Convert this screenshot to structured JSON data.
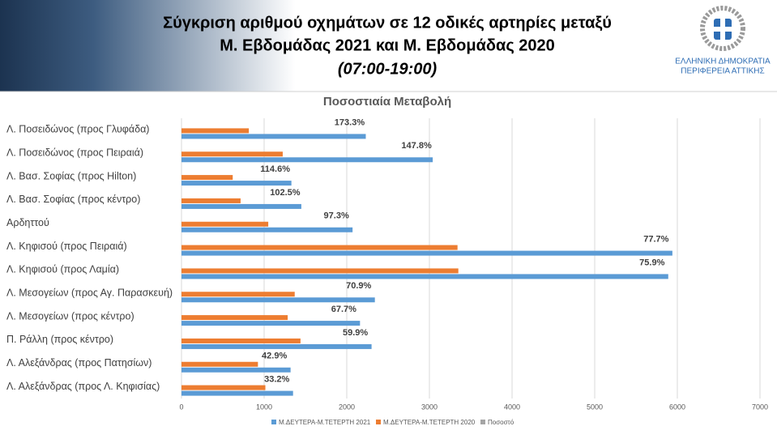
{
  "header": {
    "title": [
      "Σύγκριση αριθμού οχημάτων σε 12 οδικές αρτηρίες μεταξύ",
      "Μ. Εβδομάδας 2021 και Μ. Εβδομάδας 2020",
      "(07:00-19:00)"
    ],
    "logo": [
      "ΕΛΛΗΝΙΚΗ ΔΗΜΟΚΡΑΤΙΑ",
      "ΠΕΡΙΦΕΡΕΙΑ ΑΤΤΙΚΗΣ"
    ]
  },
  "chart_data": {
    "type": "bar",
    "orientation": "horizontal",
    "title": "Ποσοστιαία Μεταβολή",
    "categories": [
      "Λ. Ποσειδώνος (προς Γλυφάδα)",
      "Λ. Ποσειδώνος (προς Πειραιά)",
      "Λ. Βασ. Σοφίας (προς Hilton)",
      "Λ. Βασ. Σοφίας (προς κέντρο)",
      "Αρδηττού",
      "Λ. Κηφισού (προς Πειραιά)",
      "Λ. Κηφισού (προς Λαμία)",
      "Λ. Μεσογείων (προς Αγ. Παρασκευή)",
      "Λ. Μεσογείων (προς κέντρο)",
      "Π. Ράλλη (προς κέντρο)",
      "Λ. Αλεξάνδρας (προς Πατησίων)",
      "Λ. Αλεξάνδρας (προς Λ. Κηφισίας)"
    ],
    "series": [
      {
        "name": "Μ.ΔΕΥΤΕΡΑ-Μ.ΤΕΤΕΡΤΗ 2021",
        "color": "#5b9bd5",
        "values": [
          2230,
          3040,
          1330,
          1450,
          2070,
          5940,
          5890,
          2340,
          2160,
          2300,
          1320,
          1350
        ]
      },
      {
        "name": "Μ.ΔΕΥΤΕΡΑ-Μ.ΤΕΤΕΡΤΗ 2020",
        "color": "#ed7d31",
        "values": [
          815,
          1225,
          620,
          715,
          1050,
          3340,
          3350,
          1370,
          1285,
          1440,
          925,
          1015
        ]
      },
      {
        "name": "Ποσοστό",
        "color": "#a5a5a5",
        "values": [
          173.3,
          147.8,
          114.6,
          102.5,
          97.3,
          77.7,
          75.9,
          70.9,
          67.7,
          59.9,
          42.9,
          33.2
        ],
        "value_labels": [
          "173.3%",
          "147.8%",
          "114.6%",
          "102.5%",
          "97.3%",
          "77.7%",
          "75.9%",
          "70.9%",
          "67.7%",
          "59.9%",
          "42.9%",
          "33.2%"
        ]
      }
    ],
    "xlim": [
      0,
      7000
    ],
    "xticks": [
      0,
      1000,
      2000,
      3000,
      4000,
      5000,
      6000,
      7000
    ],
    "grid": true,
    "legend": "bottom"
  }
}
